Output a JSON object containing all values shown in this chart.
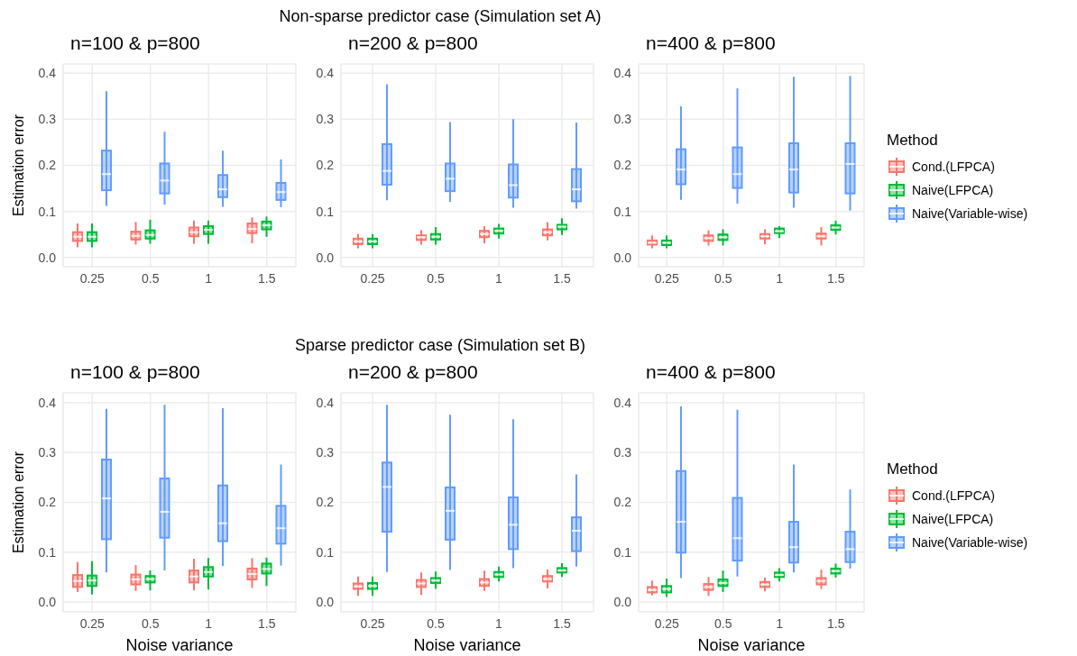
{
  "chart_data": [
    {
      "type": "box",
      "title": "n=100 & p=800",
      "ylabel": "Estimation error",
      "categories": [
        "0.25",
        "0.5",
        "1",
        "1.5"
      ],
      "ylim": [
        -0.02,
        0.42
      ],
      "yticks": [
        {
          "value": 0,
          "label": "0.0"
        },
        {
          "value": 0.1,
          "label": "0.1"
        },
        {
          "value": 0.2,
          "label": "0.2"
        },
        {
          "value": 0.3,
          "label": "0.3"
        },
        {
          "value": 0.4,
          "label": "0.4"
        }
      ],
      "grid": true,
      "series": [
        {
          "color": "#f8766d",
          "boxes": [
            {
              "low": 0.022,
              "q1": 0.036,
              "median": 0.045,
              "q3": 0.055,
              "high": 0.074
            },
            {
              "low": 0.028,
              "q1": 0.039,
              "median": 0.047,
              "q3": 0.056,
              "high": 0.077
            },
            {
              "low": 0.03,
              "q1": 0.046,
              "median": 0.055,
              "q3": 0.065,
              "high": 0.08
            },
            {
              "low": 0.031,
              "q1": 0.053,
              "median": 0.062,
              "q3": 0.074,
              "high": 0.087
            }
          ]
        },
        {
          "color": "#00ba38",
          "boxes": [
            {
              "low": 0.022,
              "q1": 0.036,
              "median": 0.045,
              "q3": 0.055,
              "high": 0.074
            },
            {
              "low": 0.03,
              "q1": 0.041,
              "median": 0.049,
              "q3": 0.059,
              "high": 0.082
            },
            {
              "low": 0.03,
              "q1": 0.051,
              "median": 0.06,
              "q3": 0.068,
              "high": 0.08
            },
            {
              "low": 0.045,
              "q1": 0.061,
              "median": 0.07,
              "q3": 0.078,
              "high": 0.089
            }
          ]
        },
        {
          "color": "#619cff",
          "boxes": [
            {
              "low": 0.112,
              "q1": 0.146,
              "median": 0.181,
              "q3": 0.232,
              "high": 0.361
            },
            {
              "low": 0.115,
              "q1": 0.139,
              "median": 0.167,
              "q3": 0.204,
              "high": 0.273
            },
            {
              "low": 0.11,
              "q1": 0.131,
              "median": 0.148,
              "q3": 0.179,
              "high": 0.232
            },
            {
              "low": 0.109,
              "q1": 0.125,
              "median": 0.142,
              "q3": 0.162,
              "high": 0.213
            }
          ]
        }
      ]
    },
    {
      "type": "box",
      "title": "n=200 & p=800",
      "subtitle": "Non-sparse predictor case (Simulation set A)",
      "categories": [
        "0.25",
        "0.5",
        "1",
        "1.5"
      ],
      "ylim": [
        -0.02,
        0.42
      ],
      "yticks": [
        {
          "value": 0,
          "label": "0.0"
        },
        {
          "value": 0.1,
          "label": "0.1"
        },
        {
          "value": 0.2,
          "label": "0.2"
        },
        {
          "value": 0.3,
          "label": "0.3"
        },
        {
          "value": 0.4,
          "label": "0.4"
        }
      ],
      "grid": true,
      "series": [
        {
          "color": "#f8766d",
          "boxes": [
            {
              "low": 0.02,
              "q1": 0.029,
              "median": 0.035,
              "q3": 0.041,
              "high": 0.051
            },
            {
              "low": 0.028,
              "q1": 0.038,
              "median": 0.044,
              "q3": 0.048,
              "high": 0.059
            },
            {
              "low": 0.031,
              "q1": 0.044,
              "median": 0.051,
              "q3": 0.058,
              "high": 0.068
            },
            {
              "low": 0.037,
              "q1": 0.048,
              "median": 0.055,
              "q3": 0.061,
              "high": 0.077
            }
          ]
        },
        {
          "color": "#00ba38",
          "boxes": [
            {
              "low": 0.02,
              "q1": 0.029,
              "median": 0.035,
              "q3": 0.041,
              "high": 0.051
            },
            {
              "low": 0.028,
              "q1": 0.039,
              "median": 0.045,
              "q3": 0.051,
              "high": 0.066
            },
            {
              "low": 0.041,
              "q1": 0.052,
              "median": 0.058,
              "q3": 0.063,
              "high": 0.073
            },
            {
              "low": 0.049,
              "q1": 0.061,
              "median": 0.067,
              "q3": 0.071,
              "high": 0.085
            }
          ]
        },
        {
          "color": "#619cff",
          "boxes": [
            {
              "low": 0.124,
              "q1": 0.158,
              "median": 0.188,
              "q3": 0.246,
              "high": 0.376
            },
            {
              "low": 0.121,
              "q1": 0.144,
              "median": 0.171,
              "q3": 0.204,
              "high": 0.294
            },
            {
              "low": 0.108,
              "q1": 0.13,
              "median": 0.157,
              "q3": 0.202,
              "high": 0.3
            },
            {
              "low": 0.106,
              "q1": 0.122,
              "median": 0.148,
              "q3": 0.192,
              "high": 0.293
            }
          ]
        }
      ]
    },
    {
      "type": "box",
      "title": "n=400 & p=800",
      "legend": "right",
      "legend_title": "Method",
      "categories": [
        "0.25",
        "0.5",
        "1",
        "1.5"
      ],
      "ylim": [
        -0.02,
        0.42
      ],
      "yticks": [
        {
          "value": 0,
          "label": "0.0"
        },
        {
          "value": 0.1,
          "label": "0.1"
        },
        {
          "value": 0.2,
          "label": "0.2"
        },
        {
          "value": 0.3,
          "label": "0.3"
        },
        {
          "value": 0.4,
          "label": "0.4"
        }
      ],
      "grid": true,
      "series": [
        {
          "name": "Cond.(LFPCA)",
          "color": "#f8766d",
          "boxes": [
            {
              "low": 0.02,
              "q1": 0.028,
              "median": 0.032,
              "q3": 0.037,
              "high": 0.048
            },
            {
              "low": 0.026,
              "q1": 0.036,
              "median": 0.042,
              "q3": 0.048,
              "high": 0.059
            },
            {
              "low": 0.029,
              "q1": 0.041,
              "median": 0.046,
              "q3": 0.051,
              "high": 0.061
            },
            {
              "low": 0.026,
              "q1": 0.041,
              "median": 0.046,
              "q3": 0.052,
              "high": 0.066
            }
          ]
        },
        {
          "name": "Naive(LFPCA)",
          "color": "#00ba38",
          "boxes": [
            {
              "low": 0.02,
              "q1": 0.027,
              "median": 0.032,
              "q3": 0.037,
              "high": 0.048
            },
            {
              "low": 0.026,
              "q1": 0.038,
              "median": 0.044,
              "q3": 0.05,
              "high": 0.061
            },
            {
              "low": 0.042,
              "q1": 0.053,
              "median": 0.057,
              "q3": 0.063,
              "high": 0.068
            },
            {
              "low": 0.05,
              "q1": 0.06,
              "median": 0.065,
              "q3": 0.07,
              "high": 0.08
            }
          ]
        },
        {
          "name": "Naive(Variable-wise)",
          "color": "#619cff",
          "boxes": [
            {
              "low": 0.125,
              "q1": 0.159,
              "median": 0.191,
              "q3": 0.235,
              "high": 0.328
            },
            {
              "low": 0.117,
              "q1": 0.151,
              "median": 0.181,
              "q3": 0.239,
              "high": 0.367
            },
            {
              "low": 0.108,
              "q1": 0.141,
              "median": 0.191,
              "q3": 0.248,
              "high": 0.392
            },
            {
              "low": 0.102,
              "q1": 0.139,
              "median": 0.203,
              "q3": 0.248,
              "high": 0.394
            }
          ]
        }
      ]
    },
    {
      "type": "box",
      "title": "n=100 & p=800",
      "xlabel": "Noise variance",
      "ylabel": "Estimation error",
      "categories": [
        "0.25",
        "0.5",
        "1",
        "1.5"
      ],
      "ylim": [
        -0.02,
        0.42
      ],
      "yticks": [
        {
          "value": 0,
          "label": "0.0"
        },
        {
          "value": 0.1,
          "label": "0.1"
        },
        {
          "value": 0.2,
          "label": "0.2"
        },
        {
          "value": 0.3,
          "label": "0.3"
        },
        {
          "value": 0.4,
          "label": "0.4"
        }
      ],
      "grid": true,
      "series": [
        {
          "color": "#f8766d",
          "boxes": [
            {
              "low": 0.02,
              "q1": 0.03,
              "median": 0.042,
              "q3": 0.054,
              "high": 0.08
            },
            {
              "low": 0.022,
              "q1": 0.035,
              "median": 0.045,
              "q3": 0.055,
              "high": 0.074
            },
            {
              "low": 0.023,
              "q1": 0.039,
              "median": 0.051,
              "q3": 0.063,
              "high": 0.087
            },
            {
              "low": 0.028,
              "q1": 0.045,
              "median": 0.056,
              "q3": 0.067,
              "high": 0.088
            }
          ]
        },
        {
          "color": "#00ba38",
          "boxes": [
            {
              "low": 0.015,
              "q1": 0.032,
              "median": 0.043,
              "q3": 0.053,
              "high": 0.082
            },
            {
              "low": 0.023,
              "q1": 0.039,
              "median": 0.046,
              "q3": 0.052,
              "high": 0.063
            },
            {
              "low": 0.025,
              "q1": 0.051,
              "median": 0.06,
              "q3": 0.07,
              "high": 0.088
            },
            {
              "low": 0.032,
              "q1": 0.057,
              "median": 0.066,
              "q3": 0.077,
              "high": 0.089
            }
          ]
        },
        {
          "color": "#619cff",
          "boxes": [
            {
              "low": 0.059,
              "q1": 0.126,
              "median": 0.208,
              "q3": 0.286,
              "high": 0.388
            },
            {
              "low": 0.063,
              "q1": 0.129,
              "median": 0.181,
              "q3": 0.248,
              "high": 0.396
            },
            {
              "low": 0.072,
              "q1": 0.122,
              "median": 0.158,
              "q3": 0.234,
              "high": 0.389
            },
            {
              "low": 0.073,
              "q1": 0.117,
              "median": 0.148,
              "q3": 0.193,
              "high": 0.276
            }
          ]
        }
      ]
    },
    {
      "type": "box",
      "title": "n=200 & p=800",
      "subtitle": "Sparse predictor case (Simulation set B)",
      "xlabel": "Noise variance",
      "categories": [
        "0.25",
        "0.5",
        "1",
        "1.5"
      ],
      "ylim": [
        -0.02,
        0.42
      ],
      "yticks": [
        {
          "value": 0,
          "label": "0.0"
        },
        {
          "value": 0.1,
          "label": "0.1"
        },
        {
          "value": 0.2,
          "label": "0.2"
        },
        {
          "value": 0.3,
          "label": "0.3"
        },
        {
          "value": 0.4,
          "label": "0.4"
        }
      ],
      "grid": true,
      "series": [
        {
          "color": "#f8766d",
          "boxes": [
            {
              "low": 0.012,
              "q1": 0.026,
              "median": 0.031,
              "q3": 0.037,
              "high": 0.051
            },
            {
              "low": 0.014,
              "q1": 0.03,
              "median": 0.037,
              "q3": 0.044,
              "high": 0.059
            },
            {
              "low": 0.022,
              "q1": 0.032,
              "median": 0.039,
              "q3": 0.046,
              "high": 0.063
            },
            {
              "low": 0.027,
              "q1": 0.041,
              "median": 0.046,
              "q3": 0.052,
              "high": 0.065
            }
          ]
        },
        {
          "color": "#00ba38",
          "boxes": [
            {
              "low": 0.012,
              "q1": 0.026,
              "median": 0.032,
              "q3": 0.038,
              "high": 0.051
            },
            {
              "low": 0.026,
              "q1": 0.038,
              "median": 0.043,
              "q3": 0.048,
              "high": 0.061
            },
            {
              "low": 0.041,
              "q1": 0.05,
              "median": 0.055,
              "q3": 0.06,
              "high": 0.071
            },
            {
              "low": 0.05,
              "q1": 0.059,
              "median": 0.063,
              "q3": 0.068,
              "high": 0.078
            }
          ]
        },
        {
          "color": "#619cff",
          "boxes": [
            {
              "low": 0.06,
              "q1": 0.141,
              "median": 0.231,
              "q3": 0.28,
              "high": 0.396
            },
            {
              "low": 0.064,
              "q1": 0.125,
              "median": 0.183,
              "q3": 0.23,
              "high": 0.376
            },
            {
              "low": 0.068,
              "q1": 0.106,
              "median": 0.155,
              "q3": 0.21,
              "high": 0.367
            },
            {
              "low": 0.071,
              "q1": 0.102,
              "median": 0.143,
              "q3": 0.17,
              "high": 0.256
            }
          ]
        }
      ]
    },
    {
      "type": "box",
      "title": "n=400 & p=800",
      "xlabel": "Noise variance",
      "legend": "right",
      "legend_title": "Method",
      "categories": [
        "0.25",
        "0.5",
        "1",
        "1.5"
      ],
      "ylim": [
        -0.02,
        0.42
      ],
      "yticks": [
        {
          "value": 0,
          "label": "0.0"
        },
        {
          "value": 0.1,
          "label": "0.1"
        },
        {
          "value": 0.2,
          "label": "0.2"
        },
        {
          "value": 0.3,
          "label": "0.3"
        },
        {
          "value": 0.4,
          "label": "0.4"
        }
      ],
      "grid": true,
      "series": [
        {
          "name": "Cond.(LFPCA)",
          "color": "#f8766d",
          "boxes": [
            {
              "low": 0.013,
              "q1": 0.019,
              "median": 0.024,
              "q3": 0.03,
              "high": 0.043
            },
            {
              "low": 0.012,
              "q1": 0.024,
              "median": 0.03,
              "q3": 0.036,
              "high": 0.05
            },
            {
              "low": 0.021,
              "q1": 0.03,
              "median": 0.035,
              "q3": 0.04,
              "high": 0.049
            },
            {
              "low": 0.026,
              "q1": 0.035,
              "median": 0.042,
              "q3": 0.048,
              "high": 0.065
            }
          ]
        },
        {
          "name": "Naive(LFPCA)",
          "color": "#00ba38",
          "boxes": [
            {
              "low": 0.01,
              "q1": 0.019,
              "median": 0.026,
              "q3": 0.032,
              "high": 0.047
            },
            {
              "low": 0.02,
              "q1": 0.032,
              "median": 0.038,
              "q3": 0.045,
              "high": 0.063
            },
            {
              "low": 0.041,
              "q1": 0.05,
              "median": 0.054,
              "q3": 0.059,
              "high": 0.068
            },
            {
              "low": 0.049,
              "q1": 0.057,
              "median": 0.062,
              "q3": 0.067,
              "high": 0.077
            }
          ]
        },
        {
          "name": "Naive(Variable-wise)",
          "color": "#619cff",
          "boxes": [
            {
              "low": 0.048,
              "q1": 0.099,
              "median": 0.161,
              "q3": 0.263,
              "high": 0.393
            },
            {
              "low": 0.051,
              "q1": 0.083,
              "median": 0.128,
              "q3": 0.209,
              "high": 0.386
            },
            {
              "low": 0.059,
              "q1": 0.079,
              "median": 0.11,
              "q3": 0.161,
              "high": 0.276
            },
            {
              "low": 0.067,
              "q1": 0.08,
              "median": 0.106,
              "q3": 0.141,
              "high": 0.226
            }
          ]
        }
      ]
    }
  ]
}
